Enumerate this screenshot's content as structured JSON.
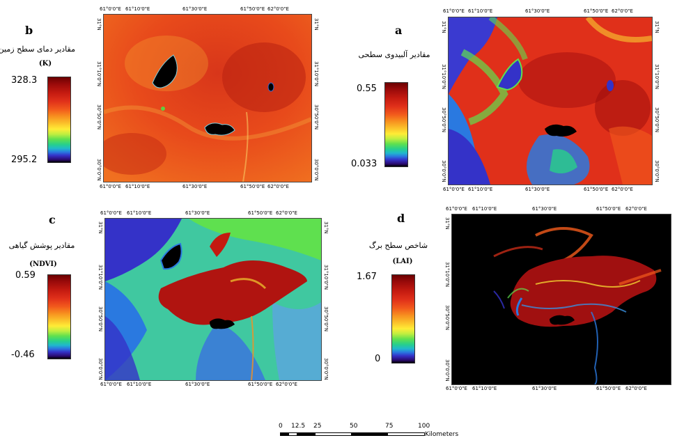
{
  "panels": {
    "b": {
      "letter": "b",
      "legend_title": "مقادیر دمای سطح زمین",
      "legend_unit": "(K)",
      "max": "328.3",
      "min": "295.2",
      "layer": "land-surface-temperature"
    },
    "a": {
      "letter": "a",
      "legend_title": "مقادیر آلبیدوی سطحی",
      "legend_unit": "",
      "max": "0.55",
      "min": "0.033",
      "layer": "surface-albedo"
    },
    "c": {
      "letter": "c",
      "legend_title": "مقادیر پوشش گیاهی",
      "legend_unit": "(NDVI)",
      "max": "0.59",
      "min": "-0.46",
      "layer": "ndvi"
    },
    "d": {
      "letter": "d",
      "legend_title": "شاخص سطح برگ",
      "legend_unit": "(LAI)",
      "max": "1.67",
      "min": "0",
      "layer": "leaf-area-index"
    }
  },
  "lon_ticks": [
    "61°0'0\"E",
    "61°10'0\"E",
    "61°30'0\"E",
    "61°50'0\"E",
    "62°0'0\"E"
  ],
  "lat_ticks": [
    "31°N",
    "31°10'0\"N",
    "30°50'0\"N",
    "30°0'0\"N"
  ],
  "scale_bar": {
    "labels": [
      "0",
      "12.5",
      "25",
      "50",
      "75",
      "100"
    ],
    "unit": "Kilometers"
  },
  "colors": {
    "ramp_high": "#6b0000",
    "ramp_mid": "#ffec36",
    "ramp_low": "#3432c8",
    "water": "#000000"
  }
}
